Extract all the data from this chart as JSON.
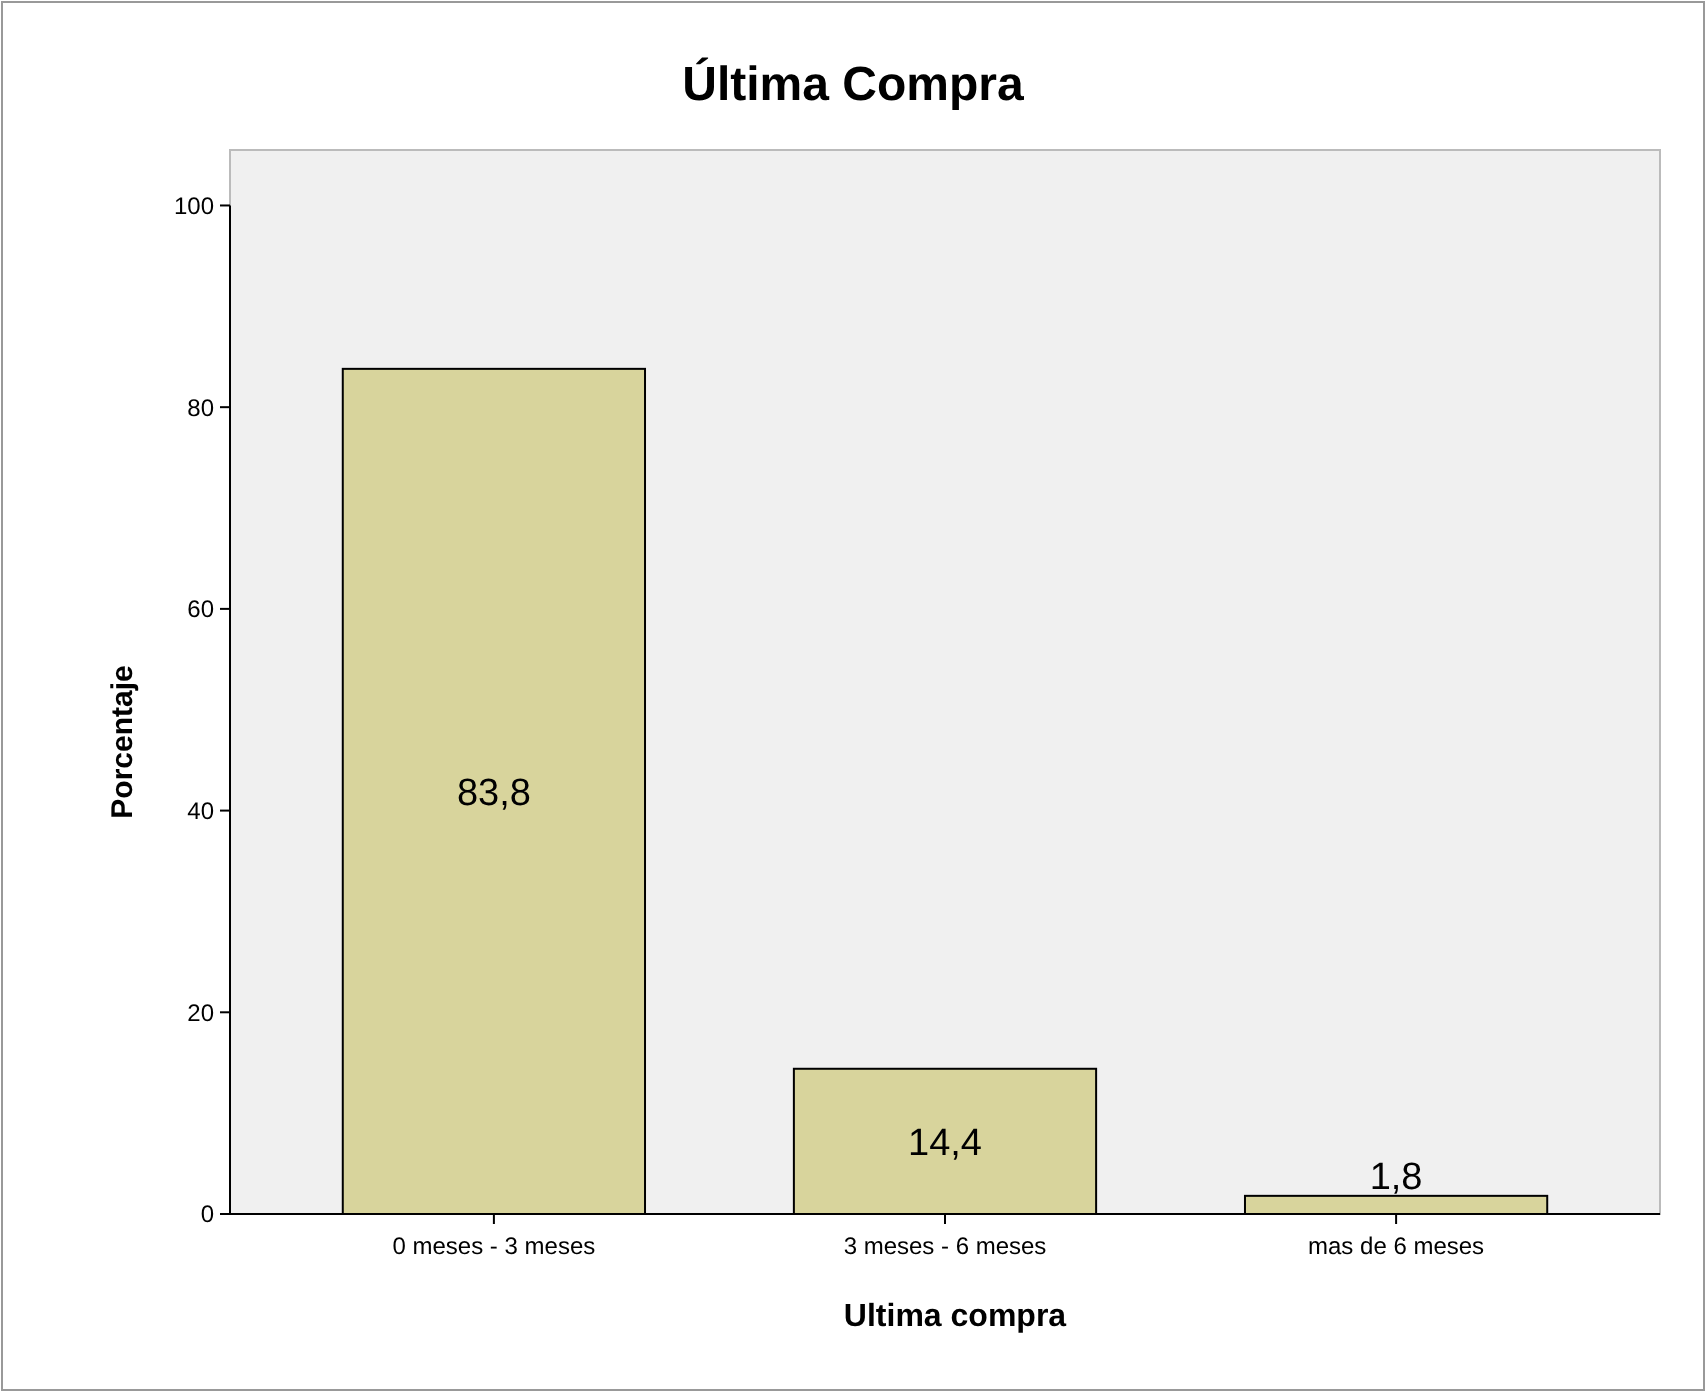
{
  "chart_data": {
    "type": "bar",
    "title": "Última Compra",
    "xlabel": "Ultima compra",
    "ylabel": "Porcentaje",
    "categories": [
      "0 meses - 3 meses",
      "3 meses - 6 meses",
      "mas de 6 meses"
    ],
    "values": [
      83.8,
      14.4,
      1.8
    ],
    "value_labels": [
      "83,8",
      "14,4",
      "1,8"
    ],
    "color": "#d8d49c",
    "ylim": [
      0,
      105.5
    ],
    "yticks": [
      0,
      20,
      40,
      60,
      80,
      100
    ],
    "grid": false
  }
}
